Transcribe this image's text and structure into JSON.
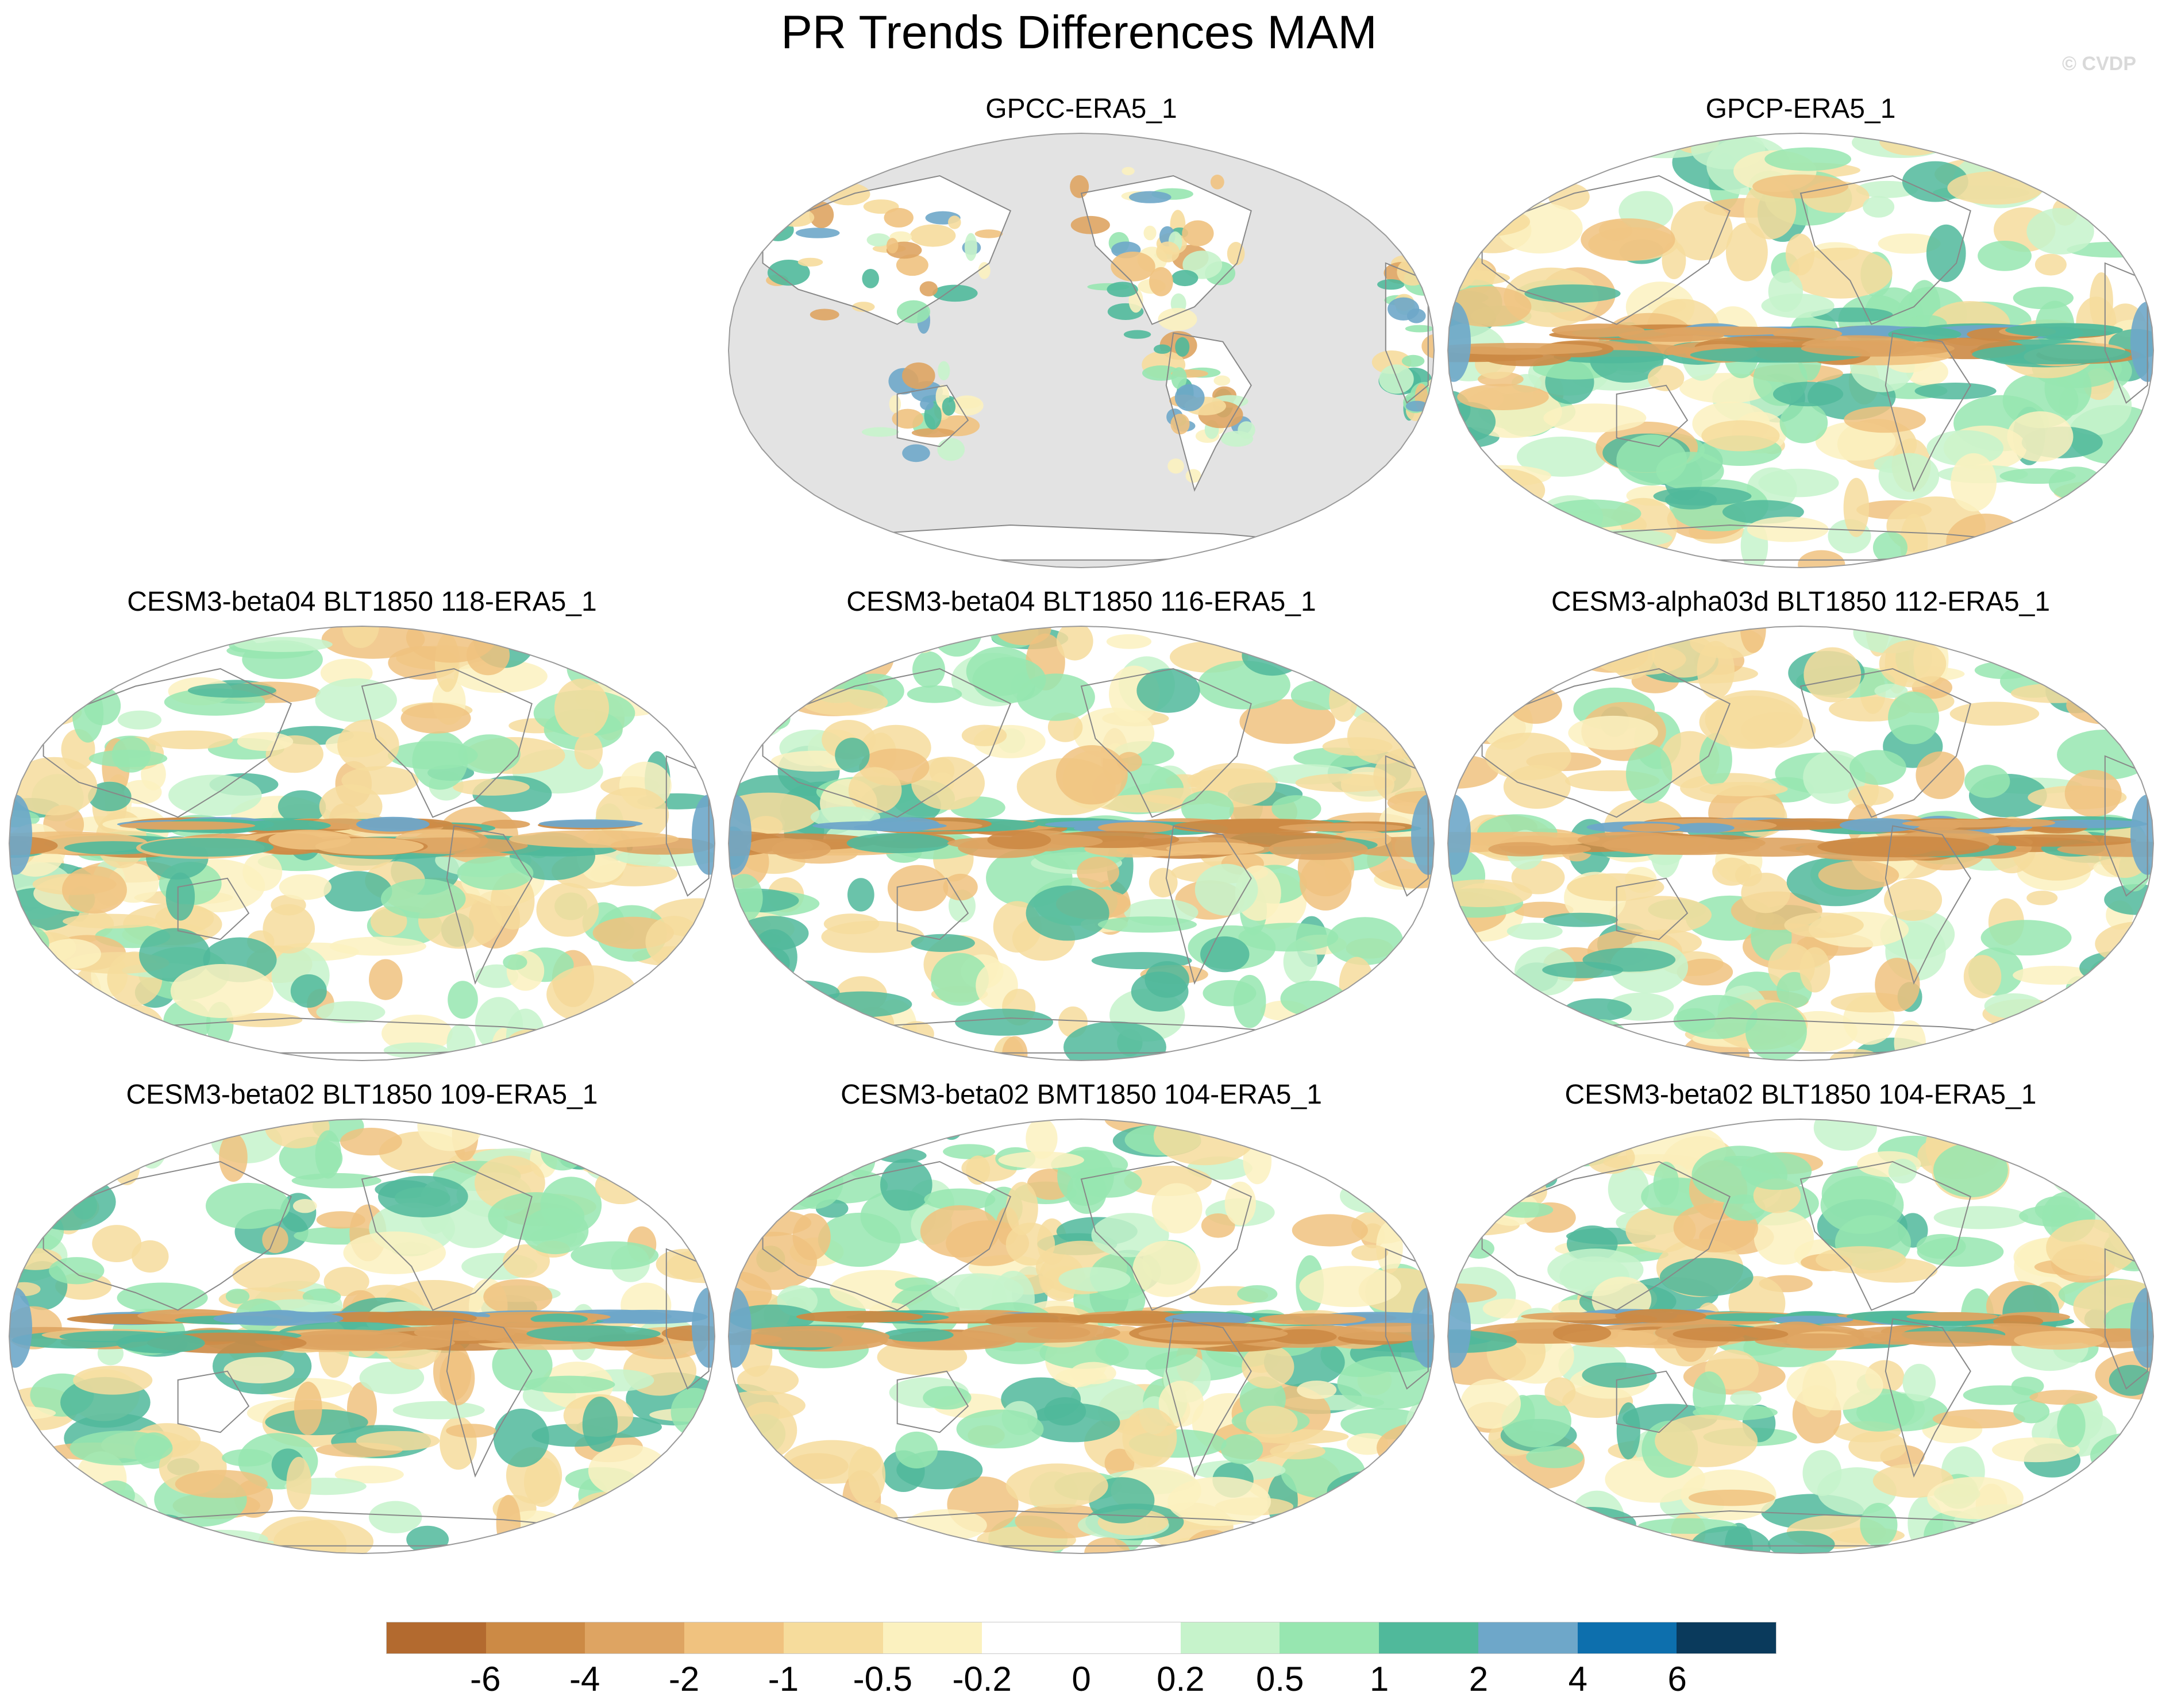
{
  "title": "PR Trends Differences MAM",
  "watermark": "© CVDP",
  "panels": [
    {
      "id": "gpcc",
      "title": "GPCC-ERA5_1",
      "type": "land"
    },
    {
      "id": "gpcp",
      "title": "GPCP-ERA5_1",
      "type": "obs"
    },
    {
      "id": "m118",
      "title": "CESM3-beta04 BLT1850 118-ERA5_1",
      "type": "model"
    },
    {
      "id": "m116",
      "title": "CESM3-beta04 BLT1850 116-ERA5_1",
      "type": "model"
    },
    {
      "id": "m112",
      "title": "CESM3-alpha03d BLT1850 112-ERA5_1",
      "type": "model"
    },
    {
      "id": "m109",
      "title": "CESM3-beta02 BLT1850 109-ERA5_1",
      "type": "model"
    },
    {
      "id": "m104bmt",
      "title": "CESM3-beta02 BMT1850 104-ERA5_1",
      "type": "model"
    },
    {
      "id": "m104blt",
      "title": "CESM3-beta02 BLT1850 104-ERA5_1",
      "type": "model"
    }
  ],
  "colorbar": {
    "colors": [
      "#b36a2f",
      "#cc8a45",
      "#dea462",
      "#f0c27f",
      "#f6dc9c",
      "#fbf1bf",
      "#ffffff",
      "#ffffff",
      "#c6f3cb",
      "#97e6b0",
      "#50b99b",
      "#6ea7c9",
      "#0d6fad",
      "#0a3a5c"
    ],
    "ticks": [
      "-6",
      "-4",
      "-2",
      "-1",
      "-0.5",
      "-0.2",
      "0",
      "0.2",
      "0.5",
      "1",
      "2",
      "4",
      "6"
    ]
  },
  "colors": {
    "land_gray": "#e3e3e3",
    "coast": "#888888",
    "border": "#9a9a9a"
  }
}
